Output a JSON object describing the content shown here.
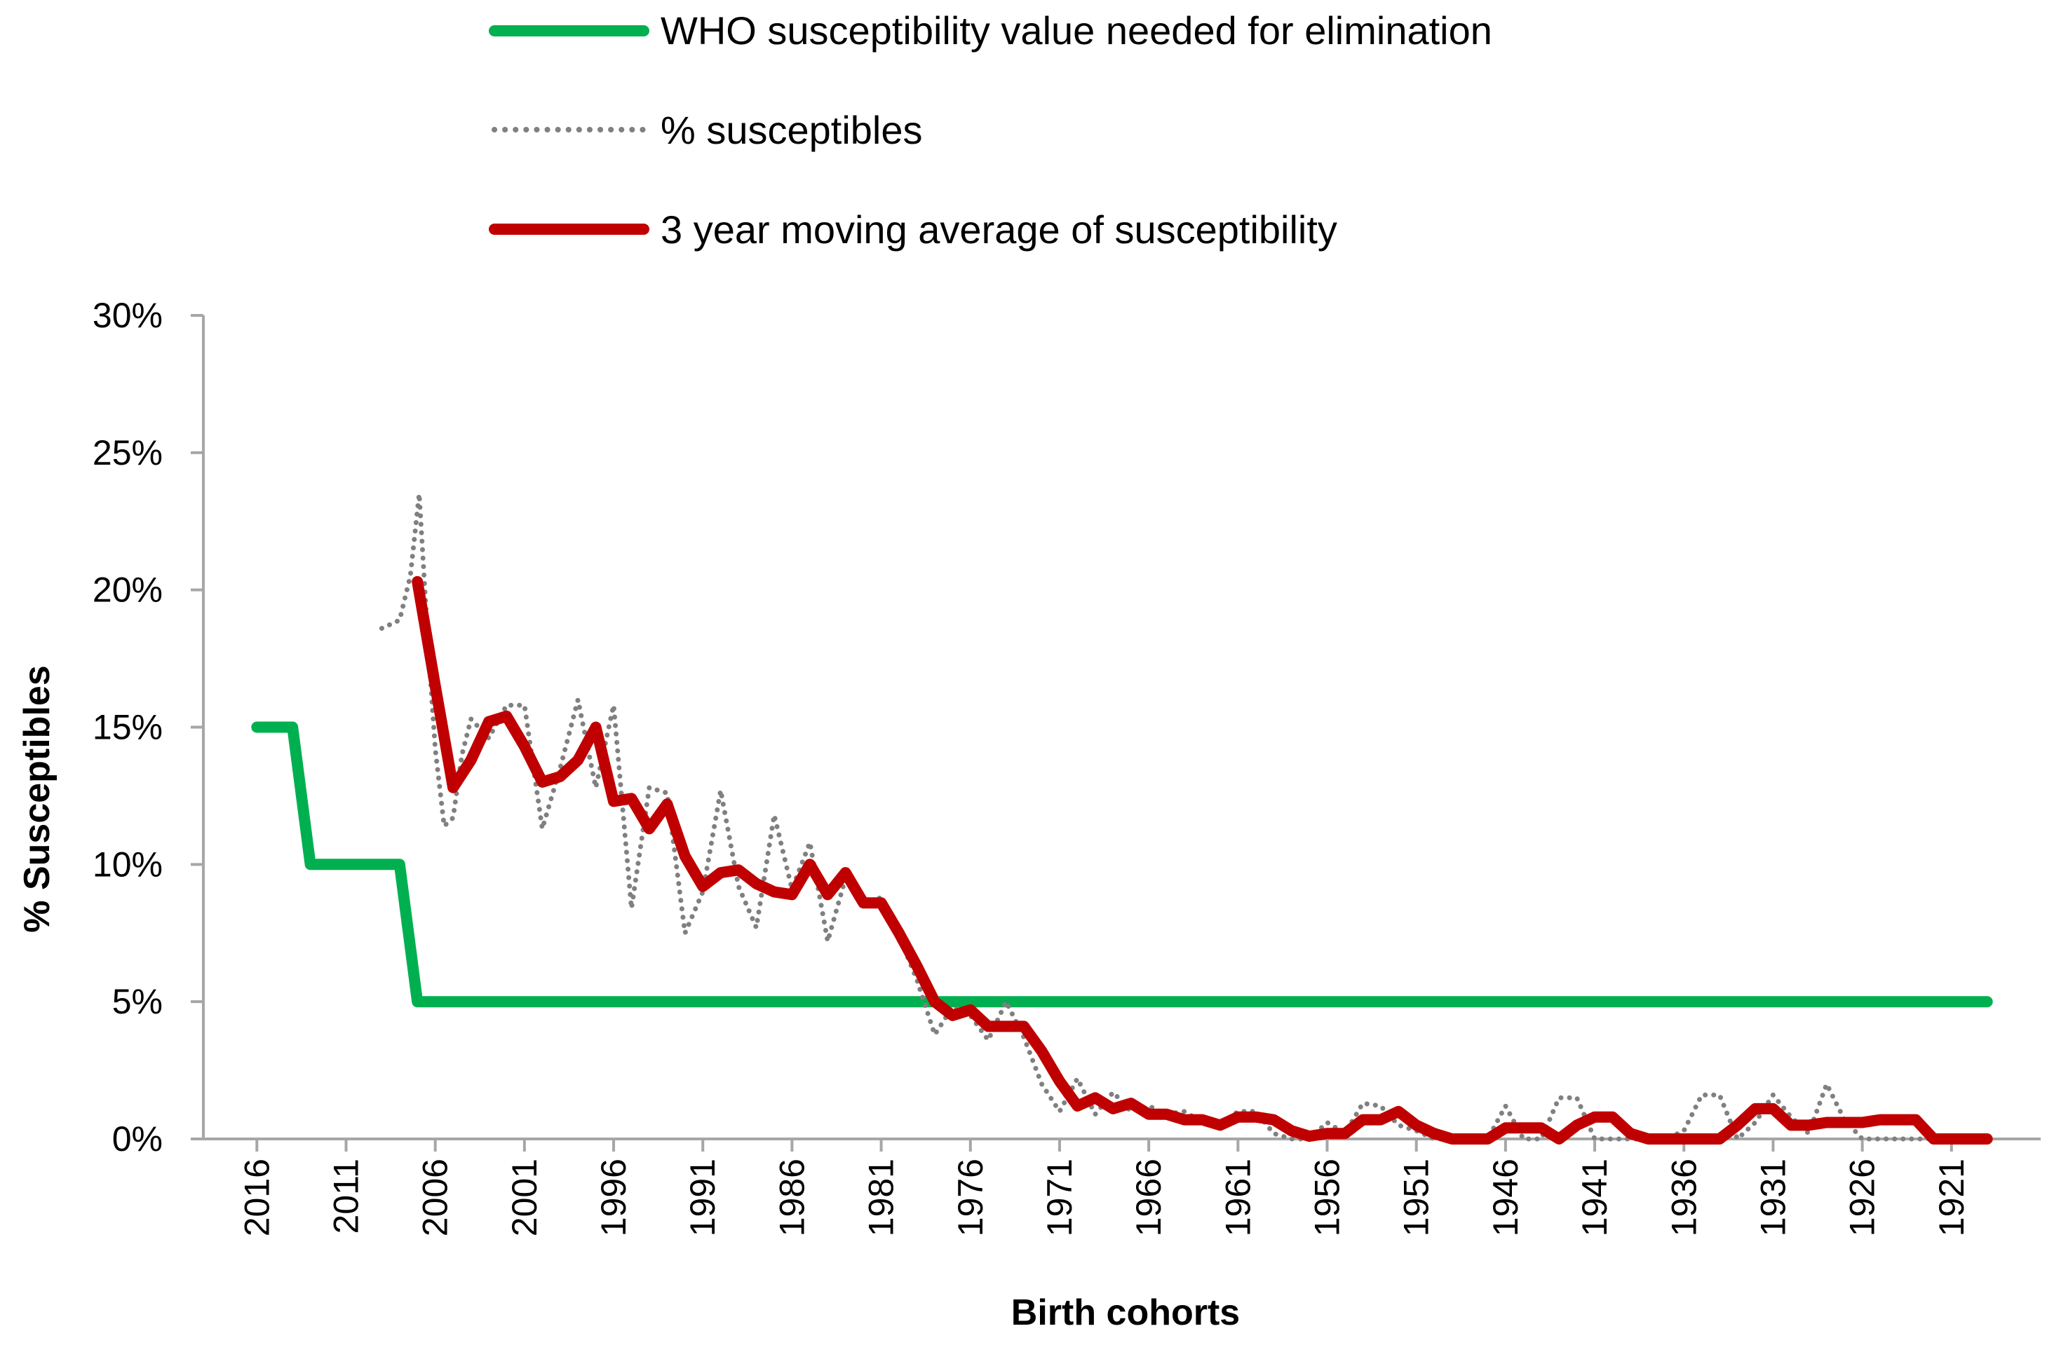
{
  "chart_data": {
    "type": "line",
    "title": "",
    "xlabel": "Birth cohorts",
    "ylabel": "% Susceptibles",
    "x_reversed": true,
    "xlim": [
      2019,
      1916
    ],
    "ylim": [
      0,
      30
    ],
    "y_ticks": [
      0,
      5,
      10,
      15,
      20,
      25,
      30
    ],
    "y_tick_labels": [
      "0%",
      "5%",
      "10%",
      "15%",
      "20%",
      "25%",
      "30%"
    ],
    "x_ticks": [
      2016,
      2011,
      2006,
      2001,
      1996,
      1991,
      1986,
      1981,
      1976,
      1971,
      1966,
      1961,
      1956,
      1951,
      1946,
      1941,
      1936,
      1931,
      1926,
      1921
    ],
    "x_tick_labels": [
      "2016",
      "2011",
      "2006",
      "2001",
      "1996",
      "1991",
      "1986",
      "1981",
      "1976",
      "1971",
      "1966",
      "1961",
      "1956",
      "1951",
      "1946",
      "1941",
      "1936",
      "1931",
      "1926",
      "1921"
    ],
    "grid": false,
    "legend_position": "top",
    "colors": {
      "who": "#00b050",
      "susceptibles": "#808080",
      "moving_average": "#c00000",
      "axis": "#a6a6a6"
    },
    "series": [
      {
        "name": "WHO susceptibility value needed for elimination",
        "style": "solid",
        "x": [
          2016,
          2014,
          2013,
          2009,
          2008,
          2007,
          1919
        ],
        "y": [
          15,
          15,
          10,
          10,
          10,
          5,
          5
        ]
      },
      {
        "name": "% susceptibles",
        "style": "dotted",
        "x": [
          2009,
          2008,
          2007.4,
          2006.9,
          2006.4,
          2006,
          2005.5,
          2005,
          2004.5,
          2004,
          2003,
          2002,
          2001,
          2000,
          1999,
          1998,
          1997,
          1996,
          1995,
          1994,
          1993,
          1992,
          1991,
          1990,
          1989,
          1988,
          1987,
          1986,
          1985,
          1984,
          1983,
          1982,
          1981,
          1980,
          1979,
          1978,
          1977,
          1976,
          1975,
          1974,
          1973,
          1972,
          1971,
          1970,
          1969,
          1968,
          1967,
          1966,
          1965,
          1964,
          1963,
          1962,
          1961,
          1960,
          1959,
          1958,
          1957,
          1956,
          1955,
          1954,
          1953,
          1952,
          1951,
          1950,
          1949,
          1948,
          1947,
          1946,
          1945,
          1944,
          1943,
          1942,
          1941,
          1940,
          1939,
          1938,
          1937,
          1936,
          1935,
          1934,
          1933,
          1932,
          1931,
          1930,
          1929,
          1928,
          1927,
          1926,
          1925,
          1924,
          1923,
          1922,
          1921,
          1920,
          1919
        ],
        "y": [
          18.6,
          18.9,
          20.5,
          23.5,
          18.0,
          14.2,
          11.4,
          11.7,
          14.0,
          15.3,
          14.6,
          15.8,
          15.8,
          11.3,
          13.5,
          16.0,
          12.8,
          15.8,
          8.4,
          12.8,
          12.6,
          7.5,
          9.0,
          12.7,
          9.2,
          7.7,
          11.8,
          9.1,
          10.8,
          7.2,
          9.5,
          8.5,
          8.8,
          7.4,
          5.8,
          3.8,
          4.8,
          4.5,
          3.6,
          5.0,
          3.7,
          2.0,
          1.0,
          2.2,
          0.9,
          1.7,
          1.0,
          1.2,
          0.9,
          1.0,
          0.6,
          0.5,
          1.0,
          1.0,
          0.2,
          0.0,
          0.0,
          0.6,
          0.2,
          1.3,
          1.2,
          0.5,
          0.3,
          0.0,
          0.0,
          0.0,
          0.0,
          1.2,
          0.0,
          0.0,
          1.5,
          1.5,
          0.0,
          0.0,
          0.0,
          0.0,
          0.0,
          0.3,
          1.6,
          1.6,
          0.0,
          0.6,
          1.6,
          0.8,
          0.2,
          2.0,
          0.7,
          0.0,
          0.0,
          0.0,
          0.0,
          0.0,
          0.0,
          0.0,
          0.0
        ]
      },
      {
        "name": "3 year moving average of susceptibility",
        "style": "solid",
        "x": [
          2007,
          2006,
          2005,
          2004,
          2003,
          2002,
          2001,
          2000,
          1999,
          1998,
          1997,
          1996,
          1995,
          1994,
          1993,
          1992,
          1991,
          1990,
          1989,
          1988,
          1987,
          1986,
          1985,
          1984,
          1983,
          1982,
          1981,
          1980,
          1979,
          1978,
          1977,
          1976,
          1975,
          1974,
          1973,
          1972,
          1971,
          1970,
          1969,
          1968,
          1967,
          1966,
          1965,
          1964,
          1963,
          1962,
          1961,
          1960,
          1959,
          1958,
          1957,
          1956,
          1955,
          1954,
          1953,
          1952,
          1951,
          1950,
          1949,
          1948,
          1947,
          1946,
          1945,
          1944,
          1943,
          1942,
          1941,
          1940,
          1939,
          1938,
          1937,
          1936,
          1935,
          1934,
          1933,
          1932,
          1931,
          1930,
          1929,
          1928,
          1927,
          1926,
          1925,
          1924,
          1923,
          1922,
          1921,
          1920,
          1919
        ],
        "y": [
          20.3,
          16.5,
          12.8,
          13.8,
          15.2,
          15.4,
          14.3,
          13.0,
          13.2,
          13.8,
          15.0,
          12.3,
          12.4,
          11.3,
          12.2,
          10.3,
          9.2,
          9.7,
          9.8,
          9.3,
          9.0,
          8.9,
          10.0,
          8.9,
          9.7,
          8.6,
          8.6,
          7.5,
          6.3,
          5.0,
          4.5,
          4.7,
          4.1,
          4.1,
          4.1,
          3.2,
          2.1,
          1.2,
          1.5,
          1.1,
          1.3,
          0.9,
          0.9,
          0.7,
          0.7,
          0.5,
          0.8,
          0.8,
          0.7,
          0.3,
          0.1,
          0.2,
          0.2,
          0.7,
          0.7,
          1.0,
          0.5,
          0.2,
          0.0,
          0.0,
          0.0,
          0.4,
          0.4,
          0.4,
          0.0,
          0.5,
          0.8,
          0.8,
          0.2,
          0.0,
          0.0,
          0.0,
          0.0,
          0.0,
          0.5,
          1.1,
          1.1,
          0.5,
          0.5,
          0.6,
          0.6,
          0.6,
          0.7,
          0.7,
          0.7,
          0.0,
          0.0,
          0.0,
          0.0
        ]
      }
    ]
  }
}
